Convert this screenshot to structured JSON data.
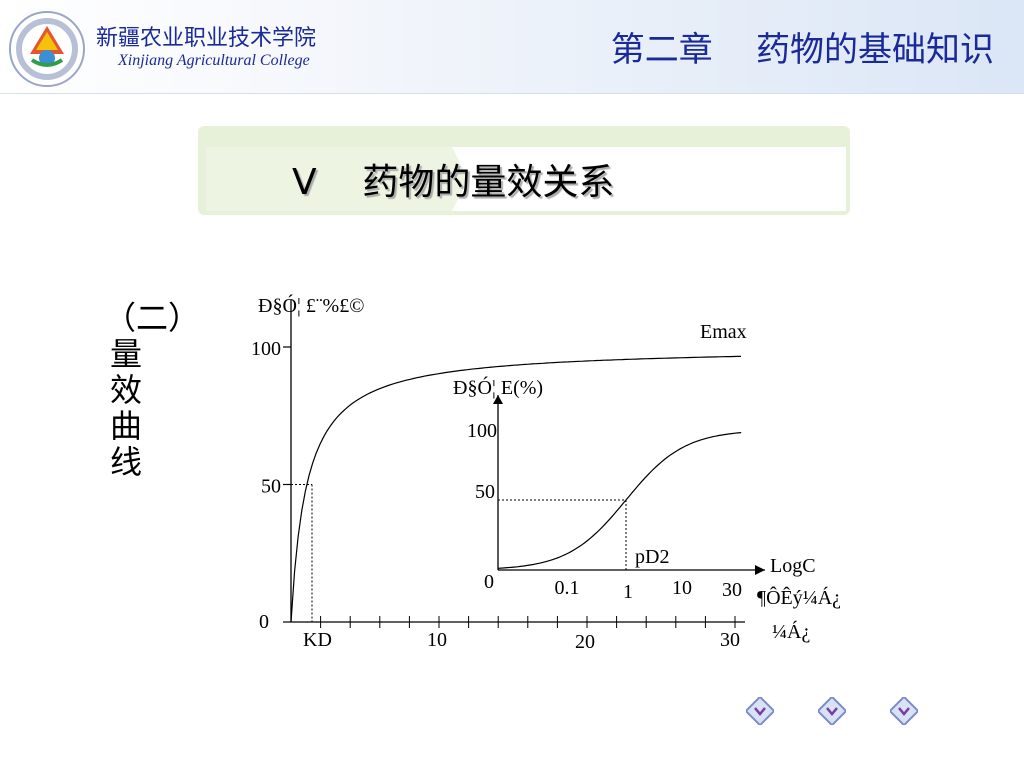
{
  "header": {
    "college_cn": "新疆农业职业技术学院",
    "college_en": "Xinjiang Agricultural College",
    "chapter": "第二章    药物的基础知识"
  },
  "slide": {
    "title": "V    药物的量效关系",
    "vertical_label": "（二）量效曲线"
  },
  "colors": {
    "brand": "#1a2a9a",
    "banner": "#e7f0d8"
  },
  "chart_data": [
    {
      "type": "line",
      "title": "",
      "ylabel": "Ð§Ó¦ £¨%£©",
      "xlabel": "¼Á¿",
      "series": [
        {
          "name": "",
          "x": [
            0,
            1,
            3,
            5,
            10,
            15,
            20,
            25,
            30,
            35
          ],
          "y": [
            0,
            50,
            75,
            83,
            91,
            94,
            96,
            97,
            98,
            99
          ]
        }
      ],
      "max_label": "Emax",
      "ylim": [
        0,
        100
      ],
      "yticks": [
        "0",
        "50",
        "100"
      ],
      "xticks": [
        "KD",
        "10",
        "20",
        "30"
      ],
      "kd_marker": {
        "x": 1,
        "y": 50
      }
    },
    {
      "type": "line",
      "title": "",
      "ylabel": "Ð§Ó¦ E(%)",
      "xlabel": "LogC",
      "xlabel2": "¶ÔÊý¼Á¿",
      "series": [
        {
          "name": "",
          "x": [
            0,
            0.2,
            0.4,
            0.6,
            0.8,
            1.0,
            1.2,
            1.4,
            1.6,
            1.8,
            2.0
          ],
          "y": [
            0,
            4,
            10,
            22,
            38,
            55,
            70,
            80,
            86,
            90,
            92
          ]
        }
      ],
      "ylim": [
        0,
        100
      ],
      "yticks": [
        "0",
        "50",
        "100"
      ],
      "xticks": [
        "0.1",
        "1",
        "10",
        "30"
      ],
      "pd2_label": "pD2",
      "pd2_marker": {
        "x": 1.0,
        "y": 50
      }
    }
  ],
  "nav": {
    "buttons": [
      "previous",
      "home",
      "next"
    ]
  }
}
